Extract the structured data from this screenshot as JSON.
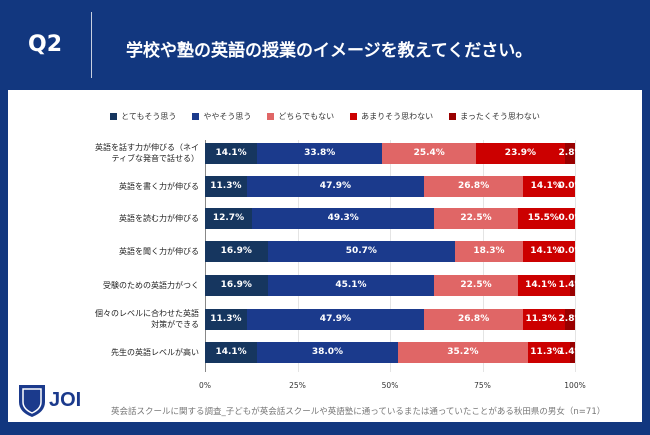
{
  "header": {
    "q": "Q2",
    "title": "学校や塾の英語の授業のイメージを教えてください。"
  },
  "logo": {
    "text": "JOI",
    "sub": "JYUKEN Labo. Online International School"
  },
  "footer": "英会話スクールに関する調査_子どもが英会話スクールや英語塾に通っているまたは通っていたことがある秋田県の男女（n=71）",
  "chart_data": {
    "type": "bar",
    "orientation": "horizontal",
    "stacked": "percent",
    "categories": [
      "英語を話す力が伸びる（ネイティブな発音で話せる）",
      "英語を書く力が伸びる",
      "英語を読む力が伸びる",
      "英語を聞く力が伸びる",
      "受験のための英語力がつく",
      "個々のレベルに合わせた英語対策ができる",
      "先生の英語レベルが高い"
    ],
    "category_lines": [
      [
        "英語を話す力が伸びる（ネイ",
        "ティブな発音で話せる）"
      ],
      [
        "英語を書く力が伸びる"
      ],
      [
        "英語を読む力が伸びる"
      ],
      [
        "英語を聞く力が伸びる"
      ],
      [
        "受験のための英語力がつく"
      ],
      [
        "個々のレベルに合わせた英語",
        "対策ができる"
      ],
      [
        "先生の英語レベルが高い"
      ]
    ],
    "series": [
      {
        "name": "とてもそう思う",
        "color": "#16365f",
        "values": [
          14.1,
          11.3,
          12.7,
          16.9,
          16.9,
          11.3,
          14.1
        ]
      },
      {
        "name": "ややそう思う",
        "color": "#1b3a8c",
        "values": [
          33.8,
          47.9,
          49.3,
          50.7,
          45.1,
          47.9,
          38.0
        ]
      },
      {
        "name": "どちらでもない",
        "color": "#e06666",
        "values": [
          25.4,
          26.8,
          22.5,
          18.3,
          22.5,
          26.8,
          35.2
        ]
      },
      {
        "name": "あまりそう思わない",
        "color": "#cc0000",
        "values": [
          23.9,
          14.1,
          15.5,
          14.1,
          14.1,
          11.3,
          11.3
        ]
      },
      {
        "name": "まったくそう思わない",
        "color": "#990000",
        "values": [
          2.8,
          0.0,
          0.0,
          0.0,
          1.4,
          2.8,
          1.4
        ]
      }
    ],
    "xticks": [
      "0%",
      "25%",
      "50%",
      "75%",
      "100%"
    ],
    "xlim": [
      0,
      100
    ],
    "legend": "top",
    "grid": true
  }
}
